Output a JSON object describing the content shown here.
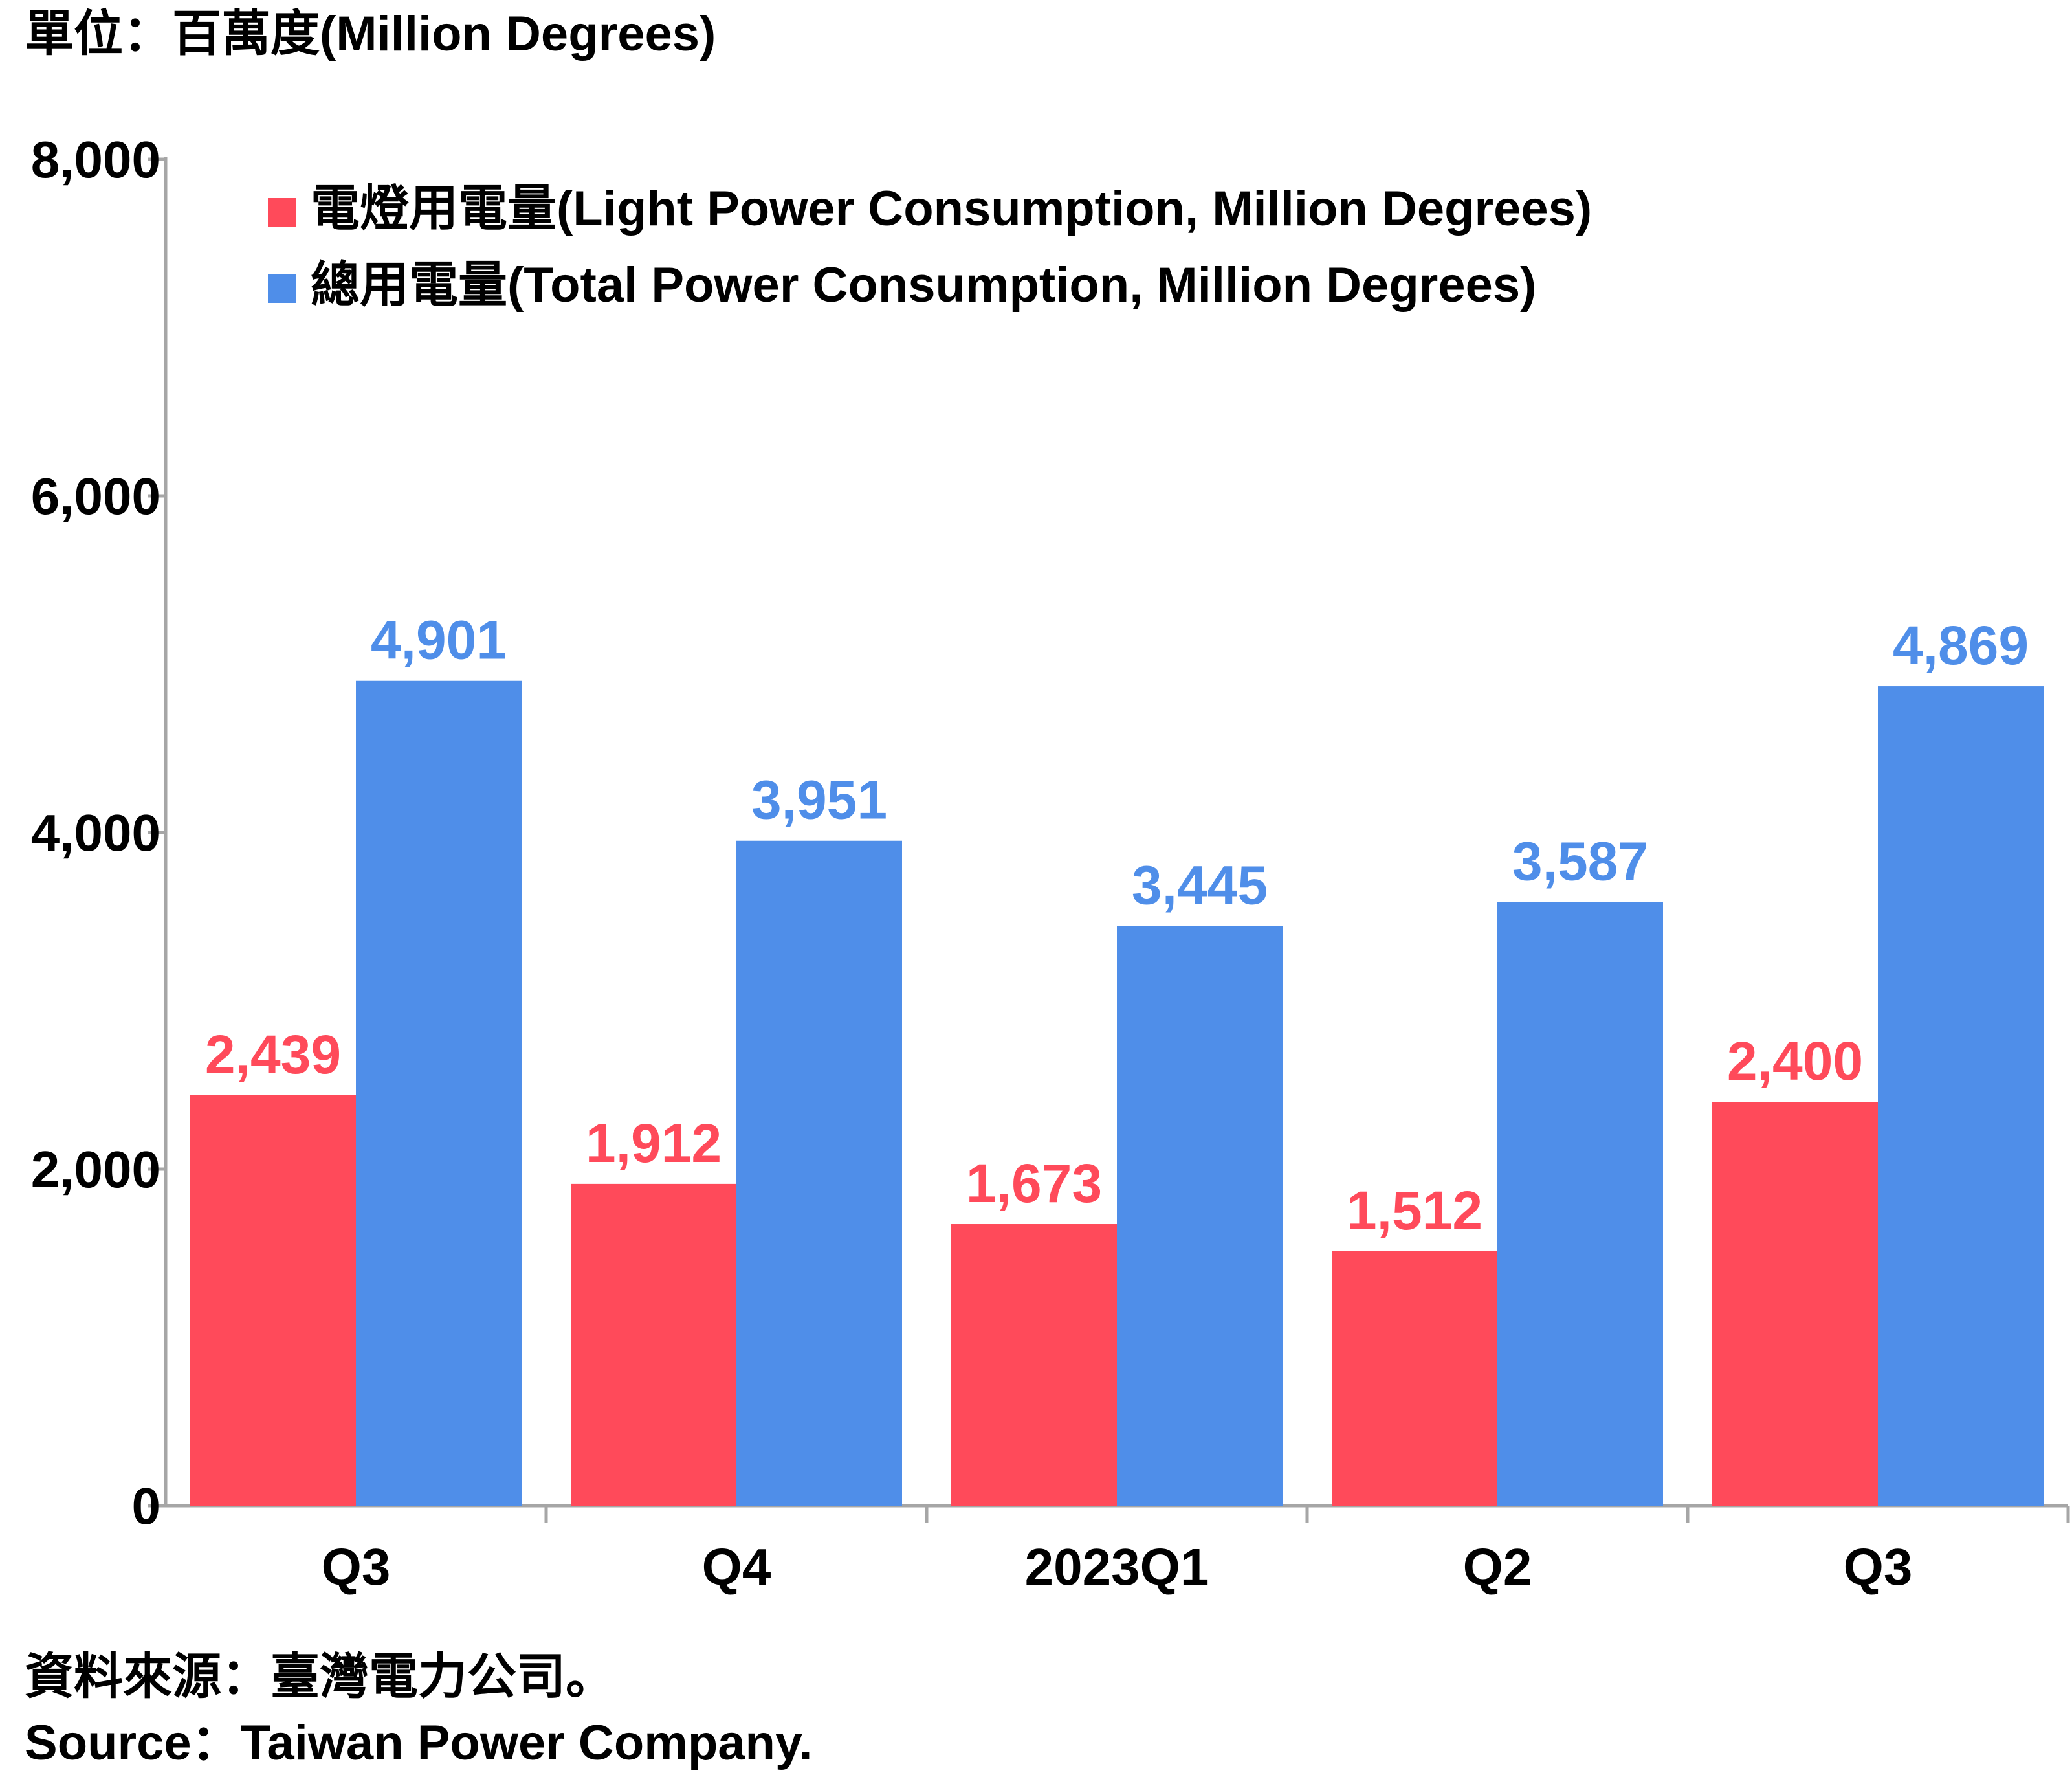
{
  "chart_data": {
    "type": "bar",
    "unit_label": "單位：百萬度(Million Degrees)",
    "categories": [
      "Q3",
      "Q4",
      "2023Q1",
      "Q2",
      "Q3"
    ],
    "series": [
      {
        "name": "電燈用電量(Light Power Consumption, Million Degrees)",
        "color": "#ff4a5a",
        "values": [
          2439,
          1912,
          1673,
          1512,
          2400
        ],
        "labels": [
          "2,439",
          "1,912",
          "1,673",
          "1,512",
          "2,400"
        ]
      },
      {
        "name": "總用電量(Total Power Consumption, Million Degrees)",
        "color": "#4f8ee9",
        "values": [
          4901,
          3951,
          3445,
          3587,
          4869
        ],
        "labels": [
          "4,901",
          "3,951",
          "3,445",
          "3,587",
          "4,869"
        ]
      }
    ],
    "yticks": [
      0,
      2000,
      4000,
      6000,
      8000
    ],
    "ytick_labels": [
      "0",
      "2,000",
      "4,000",
      "6,000",
      "8,000"
    ],
    "ylim": [
      0,
      8000
    ],
    "legend_position": "top-left",
    "grid": false
  },
  "source": {
    "zh": "資料來源：臺灣電力公司。",
    "en": "Source：Taiwan Power Company."
  }
}
